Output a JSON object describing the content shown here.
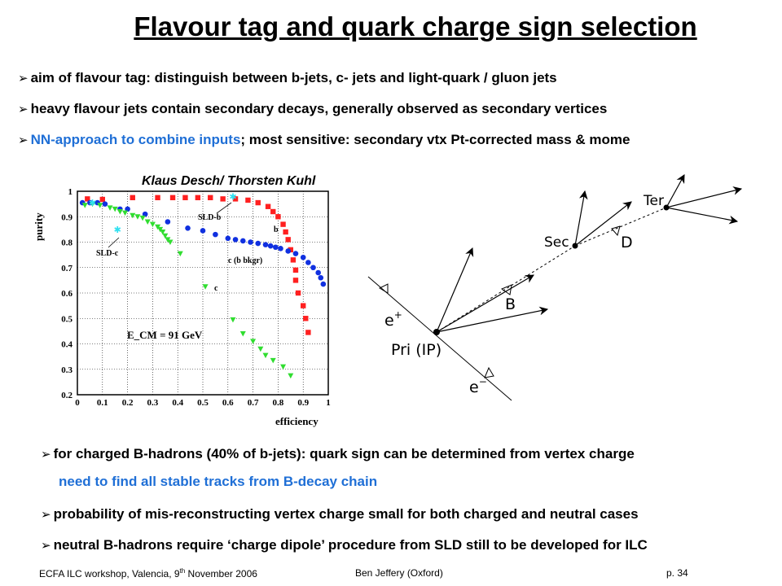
{
  "slide": {
    "title": "Flavour tag and quark charge sign selection",
    "bullets_top": [
      {
        "text": "aim of flavour tag: distinguish between b-jets, c- jets and light-quark / gluon jets"
      },
      {
        "text": "heavy flavour jets contain secondary decays, generally observed as secondary vertices"
      },
      {
        "highlight": "NN-approach to combine inputs",
        "text": "; most sensitive: secondary vtx Pt-corrected mass & mome"
      }
    ],
    "credit": "Klaus Desch/ Thorsten Kuhl",
    "bullets_bottom": [
      {
        "text": "for charged B-hadrons (40% of b-jets): quark sign can be determined from vertex charge"
      },
      {
        "sub": "need to find all stable tracks from B-decay chain"
      },
      {
        "text": "probability of mis-reconstructing vertex charge small for both charged and neutral cases"
      },
      {
        "text": "neutral B-hadrons require ‘charge dipole’ procedure from SLD still to be developed for ILC"
      }
    ],
    "footer": {
      "left_pre": "ECFA ILC workshop, Valencia, 9",
      "left_sup": "th",
      "left_post": " November  2006",
      "center": "Ben Jeffery (Oxford)",
      "right": "p. 34"
    }
  },
  "colors": {
    "b": "#ff2020",
    "c": "#1030e0",
    "light": "#30dd30",
    "sld": "#30e0f0",
    "highlight": "#1f6fd6"
  },
  "chart_data": {
    "type": "scatter",
    "xlabel": "efficiency",
    "ylabel": "purity",
    "xlim": [
      0,
      1
    ],
    "ylim": [
      0.2,
      1
    ],
    "xticks": [
      "0",
      "0.1",
      "0.2",
      "0.3",
      "0.4",
      "0.5",
      "0.6",
      "0.7",
      "0.8",
      "0.9",
      "1"
    ],
    "yticks": [
      "0.2",
      "0.3",
      "0.4",
      "0.5",
      "0.6",
      "0.7",
      "0.8",
      "0.9",
      "1"
    ],
    "annotations": [
      "SLD-b",
      "SLD-c",
      "b",
      "c (b bkgr)",
      "c",
      "E_CM = 91 GeV"
    ],
    "series": [
      {
        "key": "b",
        "marker": "square",
        "points": [
          [
            0.04,
            0.97
          ],
          [
            0.1,
            0.968
          ],
          [
            0.22,
            0.975
          ],
          [
            0.32,
            0.975
          ],
          [
            0.38,
            0.975
          ],
          [
            0.43,
            0.975
          ],
          [
            0.48,
            0.975
          ],
          [
            0.53,
            0.975
          ],
          [
            0.58,
            0.97
          ],
          [
            0.63,
            0.97
          ],
          [
            0.68,
            0.965
          ],
          [
            0.72,
            0.955
          ],
          [
            0.76,
            0.94
          ],
          [
            0.78,
            0.92
          ],
          [
            0.8,
            0.9
          ],
          [
            0.82,
            0.87
          ],
          [
            0.83,
            0.84
          ],
          [
            0.84,
            0.81
          ],
          [
            0.85,
            0.77
          ],
          [
            0.86,
            0.73
          ],
          [
            0.87,
            0.69
          ],
          [
            0.87,
            0.65
          ],
          [
            0.88,
            0.6
          ],
          [
            0.9,
            0.55
          ],
          [
            0.91,
            0.5
          ],
          [
            0.92,
            0.445
          ]
        ]
      },
      {
        "key": "c",
        "marker": "circle",
        "points": [
          [
            0.02,
            0.955
          ],
          [
            0.05,
            0.955
          ],
          [
            0.08,
            0.955
          ],
          [
            0.11,
            0.95
          ],
          [
            0.17,
            0.93
          ],
          [
            0.2,
            0.93
          ],
          [
            0.27,
            0.91
          ],
          [
            0.36,
            0.88
          ],
          [
            0.44,
            0.855
          ],
          [
            0.5,
            0.845
          ],
          [
            0.55,
            0.83
          ],
          [
            0.6,
            0.815
          ],
          [
            0.63,
            0.81
          ],
          [
            0.66,
            0.805
          ],
          [
            0.69,
            0.8
          ],
          [
            0.72,
            0.795
          ],
          [
            0.75,
            0.79
          ],
          [
            0.77,
            0.785
          ],
          [
            0.79,
            0.78
          ],
          [
            0.81,
            0.775
          ],
          [
            0.84,
            0.765
          ],
          [
            0.87,
            0.755
          ],
          [
            0.9,
            0.74
          ],
          [
            0.92,
            0.72
          ],
          [
            0.94,
            0.7
          ],
          [
            0.96,
            0.68
          ],
          [
            0.97,
            0.66
          ],
          [
            0.98,
            0.635
          ]
        ]
      },
      {
        "key": "light",
        "marker": "triangle-down",
        "points": [
          [
            0.03,
            0.945
          ],
          [
            0.06,
            0.95
          ],
          [
            0.09,
            0.945
          ],
          [
            0.13,
            0.935
          ],
          [
            0.15,
            0.93
          ],
          [
            0.17,
            0.92
          ],
          [
            0.19,
            0.915
          ],
          [
            0.22,
            0.905
          ],
          [
            0.24,
            0.9
          ],
          [
            0.26,
            0.895
          ],
          [
            0.28,
            0.88
          ],
          [
            0.3,
            0.87
          ],
          [
            0.32,
            0.86
          ],
          [
            0.33,
            0.85
          ],
          [
            0.34,
            0.84
          ],
          [
            0.35,
            0.825
          ],
          [
            0.36,
            0.81
          ],
          [
            0.37,
            0.8
          ],
          [
            0.41,
            0.755
          ],
          [
            0.51,
            0.625
          ],
          [
            0.62,
            0.495
          ],
          [
            0.66,
            0.44
          ],
          [
            0.7,
            0.41
          ],
          [
            0.73,
            0.38
          ],
          [
            0.75,
            0.355
          ],
          [
            0.78,
            0.335
          ],
          [
            0.82,
            0.31
          ],
          [
            0.85,
            0.275
          ]
        ]
      },
      {
        "key": "sld",
        "marker": "star",
        "points": [
          [
            0.06,
            0.955
          ],
          [
            0.16,
            0.85
          ],
          [
            0.62,
            0.98
          ]
        ]
      }
    ]
  },
  "diagram": {
    "labels": {
      "pri": "Pri (IP)",
      "sec": "Sec",
      "ter": "Ter",
      "b": "B",
      "d": "D",
      "eplus": "e",
      "eplus_sup": "+",
      "eminus": "e",
      "eminus_sup": "−"
    }
  }
}
